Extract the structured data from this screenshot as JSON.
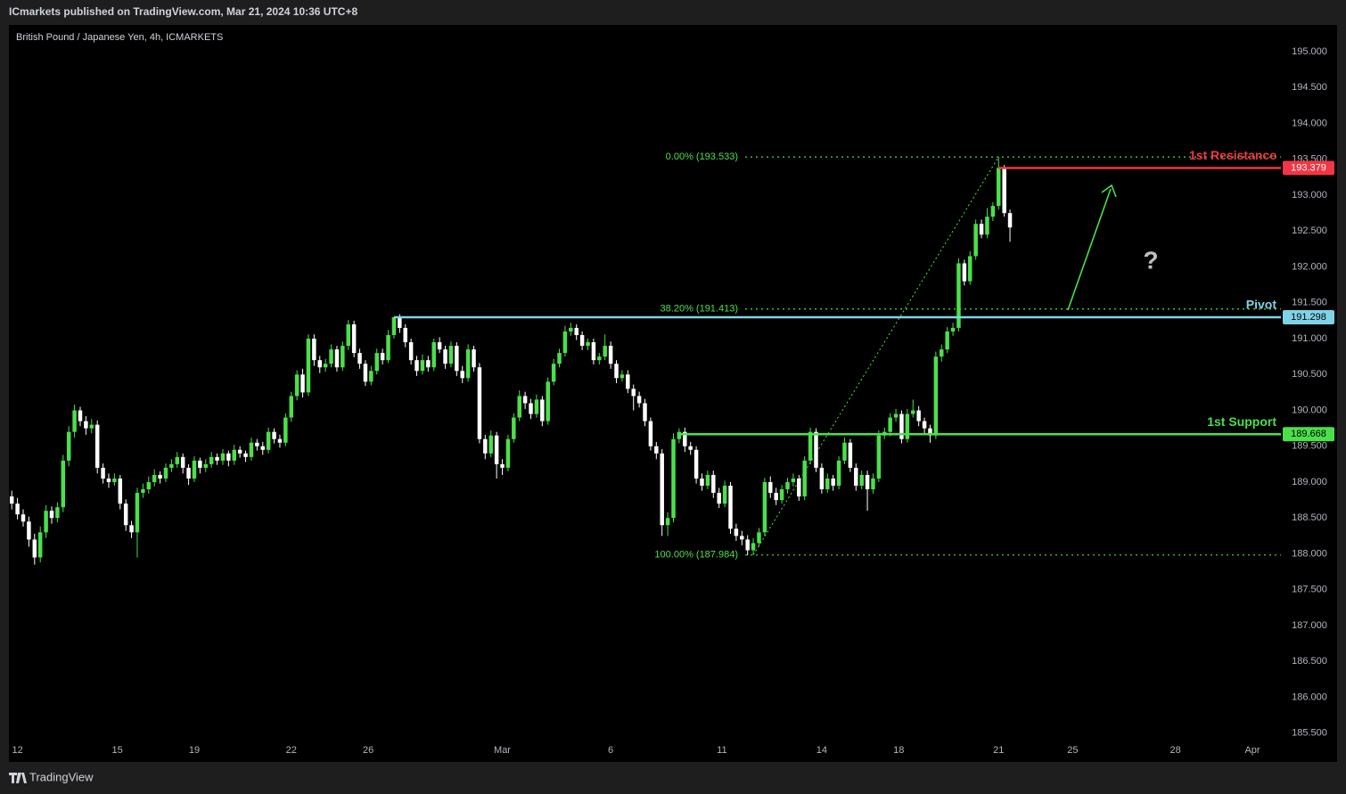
{
  "header": {
    "publisher": "ICmarkets published on TradingView.com, Mar 21, 2024 10:36 UTC+8",
    "brand": "TradingView"
  },
  "chart_data": {
    "type": "candlestick",
    "title": "British Pound / Japanese Yen, 4h, ICMARKETS",
    "up_color": "#4be04b",
    "down_color": "#ffffff",
    "xlim": [
      -0.5,
      222.5
    ],
    "ylim": [
      185.41,
      195.373
    ],
    "xticks": [
      {
        "value": 1,
        "label": "12"
      },
      {
        "value": 18.5,
        "label": "15"
      },
      {
        "value": 32,
        "label": "19"
      },
      {
        "value": 49,
        "label": "22"
      },
      {
        "value": 62.5,
        "label": "26"
      },
      {
        "value": 86,
        "label": "Mar"
      },
      {
        "value": 105,
        "label": "6"
      },
      {
        "value": 124.5,
        "label": "11"
      },
      {
        "value": 142,
        "label": "14"
      },
      {
        "value": 155.5,
        "label": "18"
      },
      {
        "value": 173,
        "label": "21"
      },
      {
        "value": 186,
        "label": "25"
      },
      {
        "value": 204,
        "label": "28"
      },
      {
        "value": 217.5,
        "label": "Apr"
      }
    ],
    "yticks": [
      {
        "value": 185.5,
        "label": "185.500"
      },
      {
        "value": 186,
        "label": "186.000"
      },
      {
        "value": 186.5,
        "label": "186.500"
      },
      {
        "value": 187,
        "label": "187.000"
      },
      {
        "value": 187.5,
        "label": "187.500"
      },
      {
        "value": 188,
        "label": "188.000"
      },
      {
        "value": 188.5,
        "label": "188.500"
      },
      {
        "value": 189,
        "label": "189.000"
      },
      {
        "value": 189.5,
        "label": "189.500"
      },
      {
        "value": 190,
        "label": "190.000"
      },
      {
        "value": 190.5,
        "label": "190.500"
      },
      {
        "value": 191,
        "label": "191.000"
      },
      {
        "value": 191.5,
        "label": "191.500"
      },
      {
        "value": 192,
        "label": "192.000"
      },
      {
        "value": 192.5,
        "label": "192.500"
      },
      {
        "value": 193,
        "label": "193.000"
      },
      {
        "value": 193.5,
        "label": "193.500"
      },
      {
        "value": 194,
        "label": "194.000"
      },
      {
        "value": 194.5,
        "label": "194.500"
      },
      {
        "value": 195,
        "label": "195.000"
      }
    ],
    "levels": [
      {
        "name": "1st Resistance",
        "value": 193.379,
        "label": "193.379",
        "color": "#f23645",
        "tag_text": "#ffffff"
      },
      {
        "name": "Pivot",
        "value": 191.298,
        "label": "191.298",
        "color": "#7fd3e6",
        "tag_text": "#000000"
      },
      {
        "name": "1st Support",
        "value": 189.668,
        "label": "189.668",
        "color": "#4be04b",
        "tag_text": "#000000"
      }
    ],
    "fib_levels": [
      {
        "label": "0.00% (193.533)",
        "value": 193.533
      },
      {
        "label": "38.20% (191.413)",
        "value": 191.413
      },
      {
        "label": "100.00% (187.984)",
        "value": 187.984
      }
    ],
    "fib_color": "#4be04b",
    "annotation": "?",
    "candles": [
      [
        188.8,
        188.88,
        188.62,
        188.7
      ],
      [
        188.7,
        188.78,
        188.48,
        188.55
      ],
      [
        188.55,
        188.62,
        188.38,
        188.45
      ],
      [
        188.45,
        188.52,
        188.1,
        188.2
      ],
      [
        188.2,
        188.28,
        187.85,
        187.95
      ],
      [
        187.95,
        188.38,
        187.88,
        188.3
      ],
      [
        188.3,
        188.68,
        188.22,
        188.6
      ],
      [
        188.6,
        188.66,
        188.42,
        188.5
      ],
      [
        188.5,
        188.72,
        188.44,
        188.65
      ],
      [
        188.65,
        189.38,
        188.58,
        189.3
      ],
      [
        189.3,
        189.78,
        189.22,
        189.7
      ],
      [
        189.7,
        190.08,
        189.62,
        190.0
      ],
      [
        190.0,
        190.05,
        189.78,
        189.85
      ],
      [
        189.85,
        189.92,
        189.66,
        189.75
      ],
      [
        189.75,
        189.88,
        189.68,
        189.8
      ],
      [
        189.8,
        189.86,
        189.12,
        189.2
      ],
      [
        189.2,
        189.26,
        188.98,
        189.05
      ],
      [
        189.05,
        189.12,
        188.92,
        189.0
      ],
      [
        189.0,
        189.12,
        188.95,
        189.05
      ],
      [
        189.05,
        189.1,
        188.62,
        188.7
      ],
      [
        188.7,
        188.76,
        188.32,
        188.4
      ],
      [
        188.4,
        188.46,
        188.22,
        188.3
      ],
      [
        188.3,
        188.92,
        187.95,
        188.85
      ],
      [
        188.85,
        188.98,
        188.78,
        188.9
      ],
      [
        188.9,
        189.08,
        188.84,
        189.0
      ],
      [
        189.0,
        189.18,
        188.94,
        189.1
      ],
      [
        189.1,
        189.15,
        188.98,
        189.05
      ],
      [
        189.05,
        189.26,
        189.0,
        189.2
      ],
      [
        189.2,
        189.32,
        189.14,
        189.25
      ],
      [
        189.25,
        189.42,
        189.2,
        189.35
      ],
      [
        189.35,
        189.4,
        189.12,
        189.2
      ],
      [
        189.2,
        189.25,
        188.96,
        189.05
      ],
      [
        189.05,
        189.36,
        189.0,
        189.3
      ],
      [
        189.3,
        189.34,
        189.12,
        189.2
      ],
      [
        189.2,
        189.32,
        189.14,
        189.25
      ],
      [
        189.25,
        189.42,
        189.2,
        189.35
      ],
      [
        189.35,
        189.4,
        189.24,
        189.3
      ],
      [
        189.3,
        189.46,
        189.24,
        189.4
      ],
      [
        189.4,
        189.44,
        189.22,
        189.3
      ],
      [
        189.3,
        189.52,
        189.24,
        189.45
      ],
      [
        189.45,
        189.5,
        189.34,
        189.4
      ],
      [
        189.4,
        189.44,
        189.28,
        189.35
      ],
      [
        189.35,
        189.62,
        189.3,
        189.55
      ],
      [
        189.55,
        189.6,
        189.44,
        189.5
      ],
      [
        189.5,
        189.56,
        189.38,
        189.45
      ],
      [
        189.45,
        189.76,
        189.4,
        189.7
      ],
      [
        189.7,
        189.75,
        189.54,
        189.6
      ],
      [
        189.6,
        189.66,
        189.48,
        189.55
      ],
      [
        189.55,
        189.96,
        189.5,
        189.9
      ],
      [
        189.9,
        190.26,
        189.84,
        190.2
      ],
      [
        190.2,
        190.56,
        190.14,
        190.5
      ],
      [
        190.5,
        190.58,
        190.18,
        190.25
      ],
      [
        190.25,
        191.06,
        190.2,
        191.0
      ],
      [
        191.0,
        191.06,
        190.62,
        190.7
      ],
      [
        190.7,
        190.76,
        190.52,
        190.6
      ],
      [
        190.6,
        190.72,
        190.54,
        190.65
      ],
      [
        190.65,
        190.92,
        190.6,
        190.85
      ],
      [
        190.85,
        190.9,
        190.54,
        190.6
      ],
      [
        190.6,
        190.96,
        190.55,
        190.9
      ],
      [
        190.9,
        191.26,
        190.84,
        191.2
      ],
      [
        191.2,
        191.25,
        190.74,
        190.8
      ],
      [
        190.8,
        190.86,
        190.58,
        190.65
      ],
      [
        190.65,
        190.7,
        190.34,
        190.4
      ],
      [
        190.4,
        190.62,
        190.35,
        190.55
      ],
      [
        190.55,
        190.86,
        190.5,
        190.8
      ],
      [
        190.8,
        190.86,
        190.64,
        190.7
      ],
      [
        190.7,
        191.12,
        190.66,
        191.05
      ],
      [
        191.05,
        191.3,
        191.0,
        191.3
      ],
      [
        191.3,
        191.34,
        191.08,
        191.15
      ],
      [
        191.15,
        191.2,
        190.88,
        190.95
      ],
      [
        190.95,
        191.0,
        190.64,
        190.7
      ],
      [
        190.7,
        190.76,
        190.48,
        190.55
      ],
      [
        190.55,
        190.78,
        190.5,
        190.7
      ],
      [
        190.7,
        190.76,
        190.54,
        190.6
      ],
      [
        190.6,
        191.0,
        190.55,
        190.95
      ],
      [
        190.95,
        191.02,
        190.8,
        190.85
      ],
      [
        190.85,
        190.9,
        190.58,
        190.65
      ],
      [
        190.65,
        190.96,
        190.6,
        190.9
      ],
      [
        190.9,
        190.95,
        190.48,
        190.55
      ],
      [
        190.55,
        190.62,
        190.38,
        190.45
      ],
      [
        190.45,
        190.92,
        190.4,
        190.85
      ],
      [
        190.85,
        190.9,
        190.54,
        190.6
      ],
      [
        190.6,
        190.66,
        189.54,
        189.6
      ],
      [
        189.6,
        189.66,
        189.32,
        189.4
      ],
      [
        189.4,
        189.72,
        189.35,
        189.65
      ],
      [
        189.65,
        189.7,
        189.05,
        189.25
      ],
      [
        189.25,
        189.32,
        189.1,
        189.2
      ],
      [
        189.2,
        189.66,
        189.15,
        189.6
      ],
      [
        189.6,
        189.96,
        189.55,
        189.9
      ],
      [
        189.9,
        190.28,
        189.85,
        190.2
      ],
      [
        190.2,
        190.26,
        190.02,
        190.1
      ],
      [
        190.1,
        190.16,
        189.88,
        189.95
      ],
      [
        189.95,
        190.22,
        189.9,
        190.15
      ],
      [
        190.15,
        190.2,
        189.78,
        189.85
      ],
      [
        189.85,
        190.46,
        189.8,
        190.4
      ],
      [
        190.4,
        190.72,
        190.35,
        190.65
      ],
      [
        190.65,
        190.86,
        190.6,
        190.8
      ],
      [
        190.8,
        191.18,
        190.75,
        191.1
      ],
      [
        191.1,
        191.22,
        191.04,
        191.15
      ],
      [
        191.15,
        191.2,
        190.98,
        191.05
      ],
      [
        191.05,
        191.1,
        190.84,
        190.9
      ],
      [
        190.9,
        191.0,
        190.84,
        190.95
      ],
      [
        190.95,
        191.0,
        190.64,
        190.7
      ],
      [
        190.7,
        190.8,
        190.64,
        190.75
      ],
      [
        190.75,
        191.06,
        190.7,
        190.9
      ],
      [
        190.9,
        190.96,
        190.58,
        190.65
      ],
      [
        190.65,
        190.7,
        190.38,
        190.45
      ],
      [
        190.45,
        190.56,
        190.4,
        190.5
      ],
      [
        190.5,
        190.56,
        190.24,
        190.3
      ],
      [
        190.3,
        190.36,
        190.0,
        190.2
      ],
      [
        190.2,
        190.26,
        190.04,
        190.1
      ],
      [
        190.1,
        190.16,
        189.78,
        189.85
      ],
      [
        189.85,
        189.9,
        189.44,
        189.5
      ],
      [
        189.5,
        189.56,
        189.32,
        189.4
      ],
      [
        189.4,
        189.46,
        188.25,
        188.4
      ],
      [
        188.4,
        188.58,
        188.25,
        188.5
      ],
      [
        188.5,
        189.68,
        188.44,
        189.6
      ],
      [
        189.6,
        189.75,
        189.54,
        189.7
      ],
      [
        189.7,
        189.76,
        189.42,
        189.5
      ],
      [
        189.5,
        189.56,
        189.38,
        189.45
      ],
      [
        189.45,
        189.5,
        188.98,
        189.05
      ],
      [
        189.05,
        189.12,
        188.88,
        188.95
      ],
      [
        188.95,
        189.16,
        188.9,
        189.1
      ],
      [
        189.1,
        189.16,
        188.78,
        188.85
      ],
      [
        188.85,
        188.92,
        188.64,
        188.7
      ],
      [
        188.7,
        189.02,
        188.65,
        188.95
      ],
      [
        188.95,
        189.0,
        188.28,
        188.35
      ],
      [
        188.35,
        188.42,
        188.18,
        188.25
      ],
      [
        188.25,
        188.32,
        188.12,
        188.2
      ],
      [
        188.2,
        188.26,
        187.98,
        188.05
      ],
      [
        188.05,
        188.22,
        187.984,
        188.15
      ],
      [
        188.15,
        188.36,
        188.1,
        188.3
      ],
      [
        188.3,
        189.06,
        188.25,
        189.0
      ],
      [
        189.0,
        189.08,
        188.78,
        188.85
      ],
      [
        188.85,
        188.92,
        188.68,
        188.75
      ],
      [
        188.75,
        188.96,
        188.7,
        188.9
      ],
      [
        188.9,
        189.06,
        188.84,
        189.0
      ],
      [
        189.0,
        189.12,
        188.94,
        189.05
      ],
      [
        189.05,
        189.1,
        188.74,
        188.8
      ],
      [
        188.8,
        189.36,
        188.75,
        189.3
      ],
      [
        189.3,
        189.76,
        189.25,
        189.7
      ],
      [
        189.7,
        189.75,
        189.14,
        189.2
      ],
      [
        189.2,
        189.26,
        188.84,
        188.9
      ],
      [
        188.9,
        189.12,
        188.85,
        189.05
      ],
      [
        189.05,
        189.1,
        188.88,
        188.95
      ],
      [
        188.95,
        189.36,
        188.9,
        189.3
      ],
      [
        189.3,
        189.62,
        189.25,
        189.55
      ],
      [
        189.55,
        189.6,
        189.14,
        189.2
      ],
      [
        189.2,
        189.26,
        188.88,
        188.95
      ],
      [
        188.95,
        189.16,
        188.9,
        189.1
      ],
      [
        189.1,
        189.16,
        188.6,
        188.9
      ],
      [
        188.9,
        189.12,
        188.84,
        189.05
      ],
      [
        189.05,
        189.72,
        189.0,
        189.65
      ],
      [
        189.65,
        189.76,
        189.6,
        189.7
      ],
      [
        189.7,
        189.96,
        189.64,
        189.9
      ],
      [
        189.9,
        190.02,
        189.84,
        189.95
      ],
      [
        189.95,
        190.0,
        189.54,
        189.6
      ],
      [
        189.6,
        190.02,
        189.55,
        189.95
      ],
      [
        189.95,
        190.15,
        189.9,
        190.0
      ],
      [
        190.0,
        190.06,
        189.78,
        189.85
      ],
      [
        189.85,
        189.9,
        189.68,
        189.75
      ],
      [
        189.75,
        189.8,
        189.55,
        189.65
      ],
      [
        189.65,
        190.82,
        189.6,
        190.75
      ],
      [
        190.75,
        190.92,
        190.68,
        190.85
      ],
      [
        190.85,
        191.16,
        190.8,
        191.1
      ],
      [
        191.1,
        191.22,
        191.04,
        191.15
      ],
      [
        191.15,
        192.12,
        191.1,
        192.05
      ],
      [
        192.05,
        192.1,
        191.74,
        191.8
      ],
      [
        191.8,
        192.22,
        191.75,
        192.15
      ],
      [
        192.15,
        192.66,
        192.1,
        192.6
      ],
      [
        192.6,
        192.66,
        192.4,
        192.45
      ],
      [
        192.45,
        192.82,
        192.4,
        192.7
      ],
      [
        192.7,
        192.9,
        192.64,
        192.85
      ],
      [
        192.85,
        193.533,
        192.8,
        193.38
      ],
      [
        193.38,
        193.42,
        192.7,
        192.75
      ],
      [
        192.75,
        192.8,
        192.35,
        192.55
      ]
    ]
  }
}
